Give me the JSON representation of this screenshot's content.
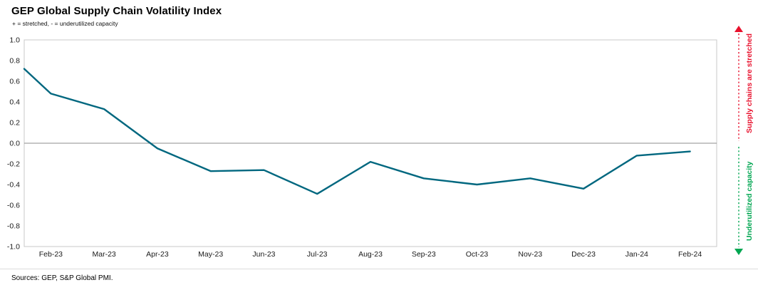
{
  "header": {
    "title": "GEP Global Supply Chain Volatility Index",
    "subtitle": "+ = stretched, - = underutilized capacity"
  },
  "annotations": {
    "stretched": {
      "label": "Supply chains are stretched",
      "color": "#e8112d"
    },
    "underutilized": {
      "label": "Underutilized capacity",
      "color": "#00a651"
    }
  },
  "footer": {
    "sources": "Sources: GEP, S&P Global PMI."
  },
  "chart_data": {
    "type": "line",
    "title": "GEP Global Supply Chain Volatility Index",
    "categories": [
      "Feb-23",
      "Mar-23",
      "Apr-23",
      "May-23",
      "Jun-23",
      "Jul-23",
      "Aug-23",
      "Sep-23",
      "Oct-23",
      "Nov-23",
      "Dec-23",
      "Jan-24",
      "Feb-24"
    ],
    "series": [
      {
        "name": "Volatility index",
        "color": "#00677f",
        "leading_edge_value": 0.72,
        "values": [
          0.48,
          0.33,
          -0.05,
          -0.27,
          -0.26,
          -0.49,
          -0.18,
          -0.34,
          -0.4,
          -0.34,
          -0.44,
          -0.12,
          -0.08
        ]
      }
    ],
    "ylim": [
      -1.0,
      1.0
    ],
    "y_ticks": [
      1.0,
      0.8,
      0.6,
      0.4,
      0.2,
      0.0,
      -0.2,
      -0.4,
      -0.6,
      -0.8,
      -1.0
    ],
    "y_tick_labels": [
      "1.0",
      "0.8",
      "0.6",
      "0.4",
      "0.2",
      "0.0",
      "-0.2",
      "-0.4",
      "-0.6",
      "-0.8",
      "-1.0"
    ],
    "zero_line": true,
    "grid": "none",
    "legend": "none",
    "axis_color": "#c8c8c8",
    "zero_line_color": "#8c8c8c",
    "tick_label_color": "#1a1a1a"
  }
}
